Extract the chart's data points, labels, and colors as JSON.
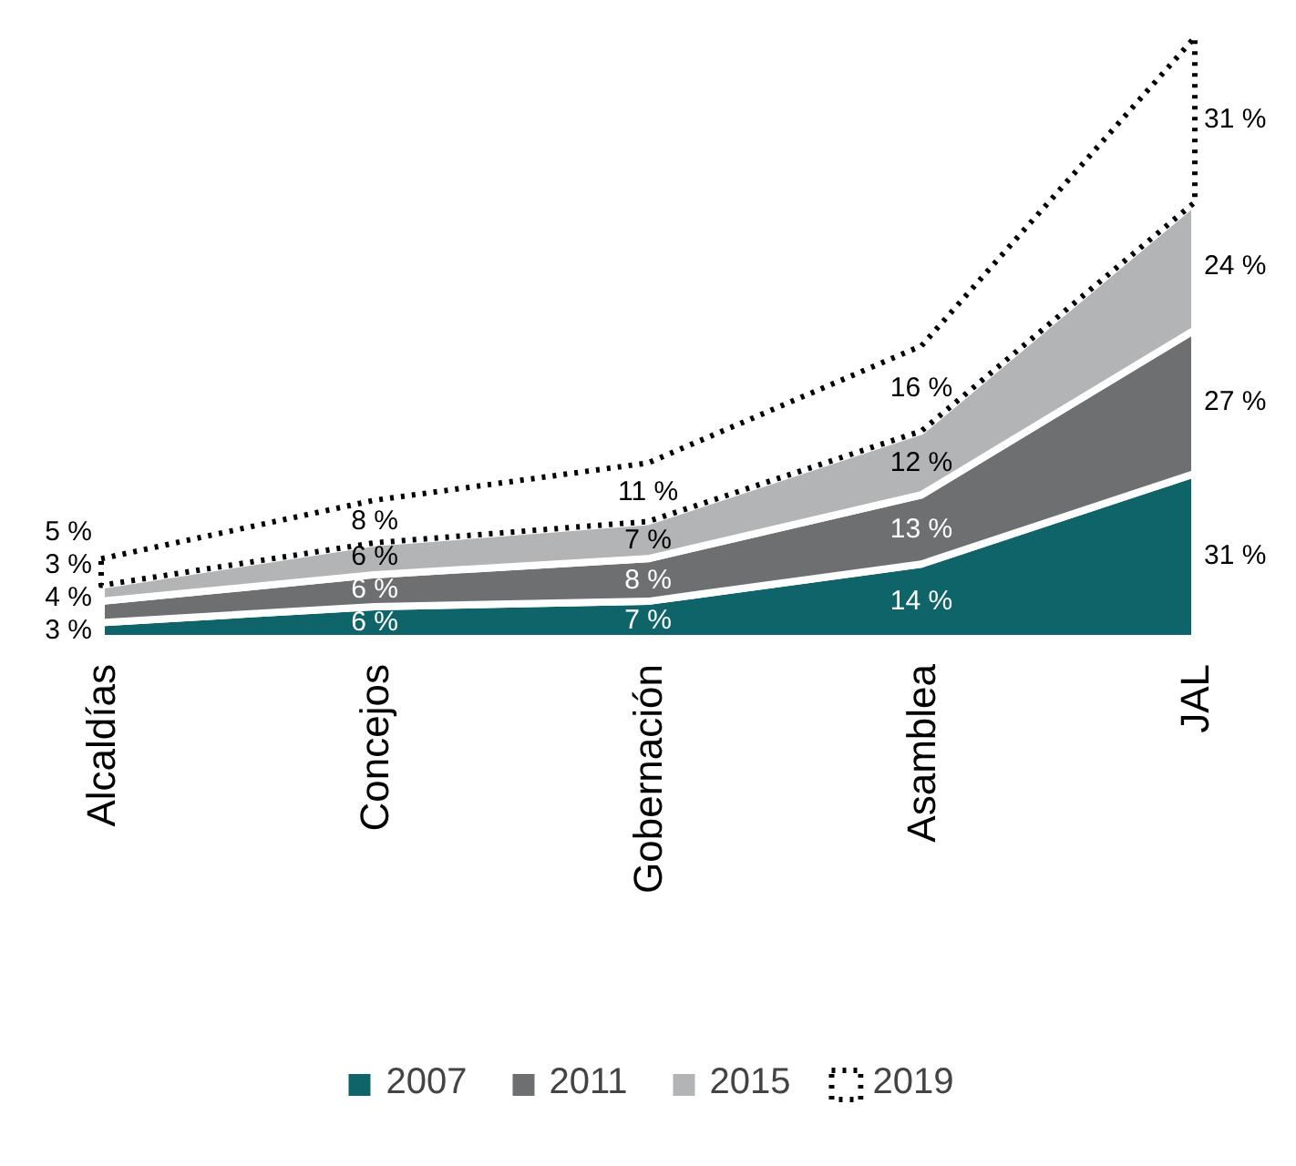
{
  "chart_data": {
    "type": "area",
    "stacked": true,
    "categories": [
      "Alcaldías",
      "Concejos",
      "Gobernación",
      "Asamblea",
      "JAL"
    ],
    "series": [
      {
        "name": "2007",
        "color": "#0e6468",
        "values": [
          3,
          6,
          7,
          14,
          31
        ],
        "value_labels": [
          "3 %",
          "6 %",
          "7 %",
          "14 %",
          "31 %"
        ]
      },
      {
        "name": "2011",
        "color": "#6d6f71",
        "values": [
          4,
          6,
          8,
          13,
          27
        ],
        "value_labels": [
          "4 %",
          "6 %",
          "8 %",
          "13 %",
          "27 %"
        ]
      },
      {
        "name": "2015",
        "color": "#b3b4b5",
        "values": [
          3,
          6,
          7,
          12,
          24
        ],
        "value_labels": [
          "3 %",
          "6 %",
          "7 %",
          "12 %",
          "24 %"
        ]
      },
      {
        "name": "2019",
        "color": "#000000",
        "line_style": "dotted",
        "values": [
          5,
          8,
          11,
          16,
          31
        ],
        "value_labels": [
          "5 %",
          "8 %",
          "11 %",
          "16 %",
          "31 %"
        ]
      }
    ],
    "legend": "bottom"
  }
}
